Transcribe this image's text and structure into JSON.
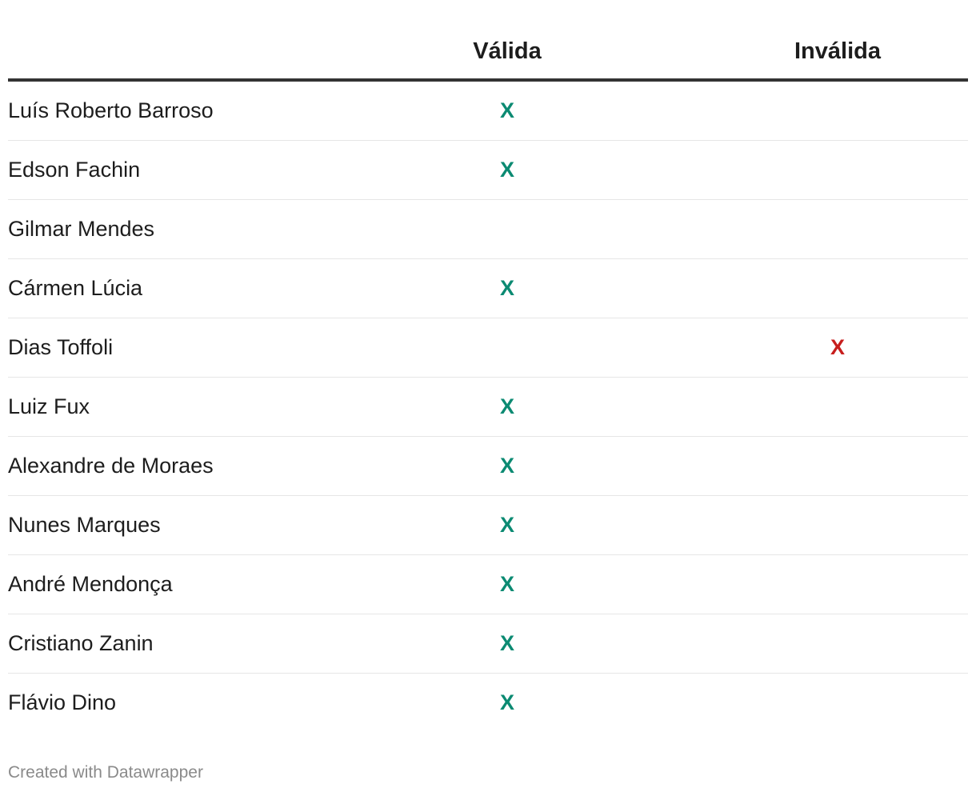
{
  "chart_data": {
    "type": "table",
    "columns": [
      "",
      "Válida",
      "Inválida"
    ],
    "rows": [
      {
        "name": "Luís Roberto Barroso",
        "valida": "X",
        "invalida": ""
      },
      {
        "name": "Edson Fachin",
        "valida": "X",
        "invalida": ""
      },
      {
        "name": "Gilmar Mendes",
        "valida": "",
        "invalida": ""
      },
      {
        "name": "Cármen Lúcia",
        "valida": "X",
        "invalida": ""
      },
      {
        "name": "Dias Toffoli",
        "valida": "",
        "invalida": "X"
      },
      {
        "name": "Luiz Fux",
        "valida": "X",
        "invalida": ""
      },
      {
        "name": "Alexandre de Moraes",
        "valida": "X",
        "invalida": ""
      },
      {
        "name": "Nunes Marques",
        "valida": "X",
        "invalida": ""
      },
      {
        "name": "André Mendonça",
        "valida": "X",
        "invalida": ""
      },
      {
        "name": "Cristiano Zanin",
        "valida": "X",
        "invalida": ""
      },
      {
        "name": "Flávio Dino",
        "valida": "X",
        "invalida": ""
      }
    ],
    "colors": {
      "valida": "#0b8a72",
      "invalida": "#c71e1d"
    }
  },
  "footer": {
    "credit": "Created with Datawrapper"
  }
}
